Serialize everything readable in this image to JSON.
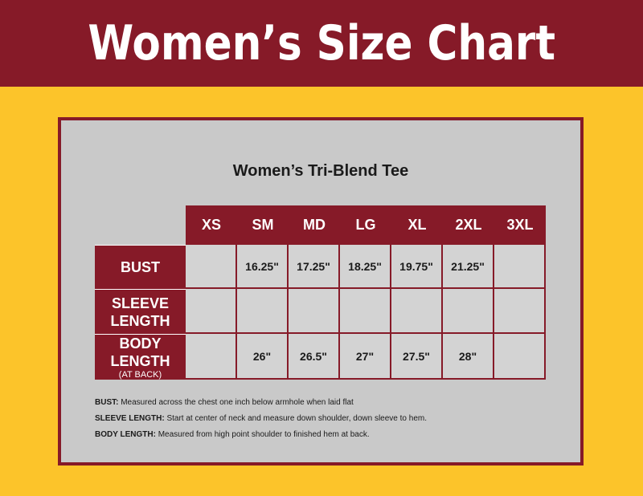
{
  "header": {
    "title": "Women’s Size Chart"
  },
  "panel": {
    "subtitle": "Women’s Tri-Blend Tee"
  },
  "table": {
    "sizes": [
      "XS",
      "SM",
      "MD",
      "LG",
      "XL",
      "2XL",
      "3XL"
    ],
    "rows": [
      {
        "label_lines": [
          "BUST"
        ],
        "values": [
          "",
          "16.25\"",
          "17.25\"",
          "18.25\"",
          "19.75\"",
          "21.25\"",
          ""
        ]
      },
      {
        "label_lines": [
          "SLEEVE",
          "LENGTH"
        ],
        "values": [
          "",
          "",
          "",
          "",
          "",
          "",
          ""
        ]
      },
      {
        "label_lines": [
          "BODY",
          "LENGTH"
        ],
        "label_note": "(AT BACK)",
        "values": [
          "",
          "26\"",
          "26.5\"",
          "27\"",
          "27.5\"",
          "28\"",
          ""
        ]
      }
    ]
  },
  "notes": [
    {
      "term": "BUST:",
      "text": " Measured across the chest one inch below armhole when laid flat"
    },
    {
      "term": "SLEEVE LENGTH:",
      "text": " Start at center of neck and measure down shoulder, down sleeve to hem."
    },
    {
      "term": "BODY LENGTH:",
      "text": " Measured from high point shoulder to finished hem at back."
    }
  ],
  "colors": {
    "maroon": "#861a28",
    "gold": "#fcc42a",
    "panel_gray": "#c9c9c9",
    "cell_gray": "#d3d3d3"
  }
}
